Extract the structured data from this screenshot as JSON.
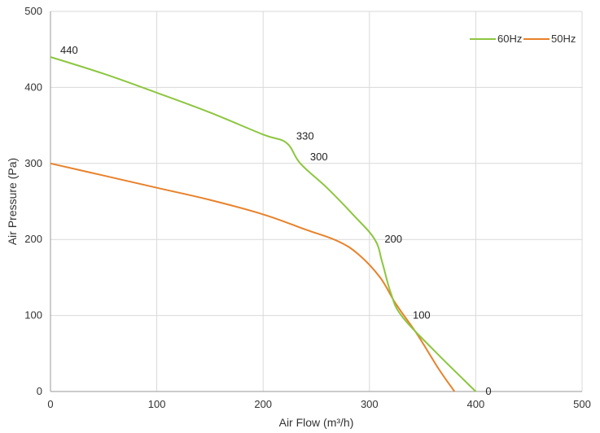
{
  "chart_data": {
    "type": "line",
    "xlabel": "Air Flow  (m³/h)",
    "ylabel": "Air Pressure  (Pa)",
    "xlim": [
      0,
      500
    ],
    "ylim": [
      0,
      500
    ],
    "xticks": [
      "0",
      "100",
      "200",
      "300",
      "400",
      "500"
    ],
    "yticks": [
      "0",
      "100",
      "200",
      "300",
      "400",
      "500"
    ],
    "grid": true,
    "legend_position": "top-right",
    "series": [
      {
        "name": "60Hz",
        "color": "#8cc63f",
        "points": [
          [
            0,
            440
          ],
          [
            50,
            418
          ],
          [
            100,
            393
          ],
          [
            150,
            367
          ],
          [
            200,
            338
          ],
          [
            222,
            327
          ],
          [
            235,
            300
          ],
          [
            260,
            268
          ],
          [
            285,
            232
          ],
          [
            305,
            200
          ],
          [
            312,
            170
          ],
          [
            320,
            130
          ],
          [
            330,
            100
          ],
          [
            360,
            55
          ],
          [
            400,
            0
          ]
        ]
      },
      {
        "name": "50Hz",
        "color": "#e8812a",
        "points": [
          [
            0,
            300
          ],
          [
            50,
            284
          ],
          [
            100,
            268
          ],
          [
            150,
            252
          ],
          [
            200,
            233
          ],
          [
            240,
            213
          ],
          [
            270,
            198
          ],
          [
            290,
            180
          ],
          [
            310,
            150
          ],
          [
            325,
            115
          ],
          [
            345,
            75
          ],
          [
            365,
            30
          ],
          [
            380,
            0
          ]
        ]
      }
    ],
    "data_labels": [
      {
        "text": "440",
        "x": 0,
        "y": 440
      },
      {
        "text": "330",
        "x": 222,
        "y": 327
      },
      {
        "text": "300",
        "x": 235,
        "y": 300
      },
      {
        "text": "200",
        "x": 305,
        "y": 200
      },
      {
        "text": "100",
        "x": 330,
        "y": 100
      },
      {
        "text": "0",
        "x": 400,
        "y": 0
      }
    ]
  }
}
